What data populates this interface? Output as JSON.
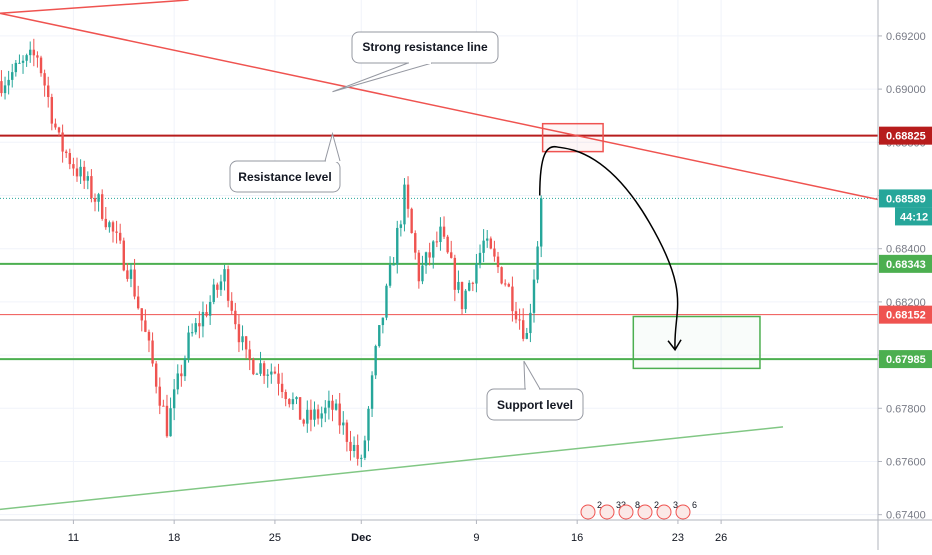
{
  "chart_data": {
    "type": "candlestick",
    "x_axis": {
      "ticks": [
        {
          "label": "11",
          "day": 11
        },
        {
          "label": "18",
          "day": 18
        },
        {
          "label": "25",
          "day": 25
        },
        {
          "label": "Dec",
          "day": 31
        },
        {
          "label": "9",
          "day": 39
        },
        {
          "label": "16",
          "day": 46
        },
        {
          "label": "23",
          "day": 53
        },
        {
          "label": "26",
          "day": 56
        }
      ],
      "range": [
        5.9,
        66.9
      ]
    },
    "y_axis": {
      "ticks": [
        "0.69200",
        "0.69000",
        "0.68800",
        "0.68600",
        "0.68400",
        "0.68200",
        "0.68000",
        "0.67800",
        "0.67600",
        "0.67400"
      ],
      "tick_values": [
        0.692,
        0.69,
        0.688,
        0.686,
        0.684,
        0.682,
        0.68,
        0.678,
        0.676,
        0.674
      ],
      "range": [
        0.6738,
        0.69335
      ]
    },
    "price_labels": [
      {
        "value": 0.68825,
        "label": "0.68825",
        "color": "#b71c1c"
      },
      {
        "value": 0.68589,
        "label": "0.68589",
        "color": "#26a69a"
      },
      {
        "value": 0.68343,
        "label": "0.68343",
        "color": "#4caf50"
      },
      {
        "value": 0.68152,
        "label": "0.68152",
        "color": "#ef5350"
      },
      {
        "value": 0.67985,
        "label": "0.67985",
        "color": "#4caf50"
      }
    ],
    "countdown": "44:12",
    "levels": [
      {
        "value": 0.68825,
        "color": "#b71c1c",
        "width": 2
      },
      {
        "value": 0.68343,
        "color": "#4caf50",
        "width": 2
      },
      {
        "value": 0.67985,
        "color": "#4caf50",
        "width": 2
      },
      {
        "value": 0.68152,
        "color": "#ef5350",
        "width": 1
      }
    ],
    "current_price": 0.68589,
    "trendlines": [
      {
        "color": "#ef5350",
        "points": [
          [
            5.9,
            0.69285
          ],
          [
            66.9,
            0.68585
          ]
        ]
      },
      {
        "color": "#ef5350",
        "points": [
          [
            5.9,
            0.69285
          ],
          [
            19.0,
            0.69335
          ]
        ]
      },
      {
        "color": "#81c784",
        "points": [
          [
            5.9,
            0.6742
          ],
          [
            60.3,
            0.6773
          ]
        ]
      }
    ],
    "annotations": [
      {
        "text": "Strong resistance line",
        "anchor": [
          29.0,
          0.6899
        ]
      },
      {
        "text": "Resistance level",
        "anchor": [
          29.0,
          0.68825
        ]
      },
      {
        "text": "Support level",
        "anchor": [
          42.3,
          0.67985
        ]
      }
    ],
    "boxes": [
      {
        "color": "#ef5350",
        "x": [
          43.6,
          47.8
        ],
        "y": [
          0.68765,
          0.6887
        ]
      },
      {
        "color": "#4caf50",
        "x": [
          49.9,
          58.7
        ],
        "y": [
          0.6795,
          0.68145
        ]
      }
    ],
    "forecast_path": [
      [
        43.4,
        0.686
      ],
      [
        44.6,
        0.6876
      ],
      [
        48.0,
        0.6874
      ],
      [
        51.0,
        0.685
      ],
      [
        52.8,
        0.6802
      ]
    ],
    "key_points": [
      {
        "day": 6.0,
        "price": 0.6903
      },
      {
        "day": 8.5,
        "price": 0.6913
      },
      {
        "day": 10.0,
        "price": 0.688
      },
      {
        "day": 13.0,
        "price": 0.6855
      },
      {
        "day": 15.0,
        "price": 0.683
      },
      {
        "day": 17.0,
        "price": 0.6785
      },
      {
        "day": 17.5,
        "price": 0.6773
      },
      {
        "day": 19.0,
        "price": 0.6805
      },
      {
        "day": 21.5,
        "price": 0.683
      },
      {
        "day": 23.0,
        "price": 0.6798
      },
      {
        "day": 25.0,
        "price": 0.6794
      },
      {
        "day": 27.0,
        "price": 0.6775
      },
      {
        "day": 29.0,
        "price": 0.678
      },
      {
        "day": 30.5,
        "price": 0.6765
      },
      {
        "day": 31.0,
        "price": 0.6758
      },
      {
        "day": 32.0,
        "price": 0.68
      },
      {
        "day": 33.5,
        "price": 0.6845
      },
      {
        "day": 34.0,
        "price": 0.686
      },
      {
        "day": 35.0,
        "price": 0.683
      },
      {
        "day": 36.5,
        "price": 0.6845
      },
      {
        "day": 38.0,
        "price": 0.682
      },
      {
        "day": 39.5,
        "price": 0.6842
      },
      {
        "day": 41.0,
        "price": 0.6828
      },
      {
        "day": 42.5,
        "price": 0.6807
      },
      {
        "day": 43.6,
        "price": 0.6859
      }
    ],
    "event_markers": [
      "2",
      "33",
      "8",
      "2",
      "3",
      "6"
    ]
  }
}
